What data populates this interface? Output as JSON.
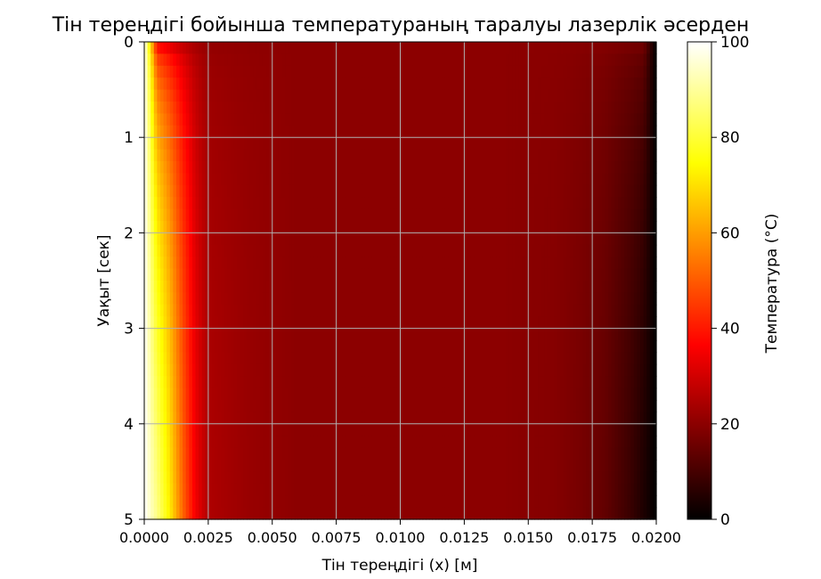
{
  "chart_data": {
    "type": "heatmap",
    "title": "Тін тереңдігі бойынша температураның таралуы лазерлік әсерден",
    "xlabel": "Тін тереңдігі (x) [м]",
    "ylabel": "Уақыт [сек]",
    "colorbar_label": "Температура (°C)",
    "colormap": "hot",
    "xlim": [
      0.0,
      0.02
    ],
    "ylim": [
      0,
      5
    ],
    "y_inverted": true,
    "clim": [
      0,
      100
    ],
    "grid": true,
    "xticks": [
      0.0,
      0.0025,
      0.005,
      0.0075,
      0.01,
      0.0125,
      0.015,
      0.0175,
      0.02
    ],
    "xtick_labels": [
      "0.0000",
      "0.0025",
      "0.0050",
      "0.0075",
      "0.0100",
      "0.0125",
      "0.0150",
      "0.0175",
      "0.0200"
    ],
    "yticks": [
      0,
      1,
      2,
      3,
      4,
      5
    ],
    "ytick_labels": [
      "0",
      "1",
      "2",
      "3",
      "4",
      "5"
    ],
    "colorbar_ticks": [
      0,
      20,
      40,
      60,
      80,
      100
    ],
    "colorbar_tick_labels": [
      "0",
      "20",
      "40",
      "60",
      "80",
      "100"
    ],
    "depth_profile": {
      "x": [
        0.0,
        0.0005,
        0.001,
        0.0015,
        0.002,
        0.0025,
        0.004,
        0.006,
        0.01,
        0.014,
        0.016,
        0.017,
        0.018,
        0.0185,
        0.019,
        0.0195,
        0.02
      ],
      "temperature_t0": [
        100,
        22,
        20,
        20,
        20,
        20,
        20,
        20,
        20,
        20,
        20,
        20,
        20,
        20,
        20,
        20,
        0
      ],
      "temperature_t5": [
        100,
        88,
        72,
        52,
        35,
        25,
        22,
        20,
        20,
        20,
        19,
        17,
        14,
        11,
        8,
        4,
        0
      ]
    }
  }
}
